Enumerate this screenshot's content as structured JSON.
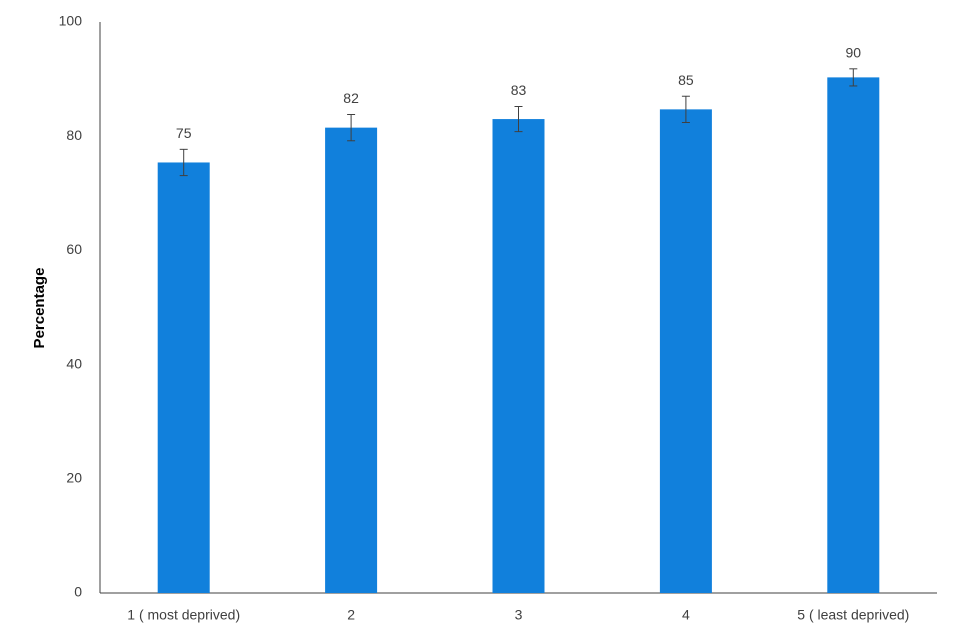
{
  "chart_data": {
    "type": "bar",
    "y_label": "Percentage",
    "categories": [
      "1 ( most deprived)",
      "2",
      "3",
      "4",
      "5 ( least deprived)"
    ],
    "values": [
      75.4,
      81.5,
      83.0,
      84.7,
      90.3
    ],
    "value_labels": [
      "75",
      "82",
      "83",
      "85",
      "90"
    ],
    "errors": [
      2.3,
      2.3,
      2.2,
      2.3,
      1.5
    ],
    "color": "#1180dc",
    "ylim": [
      0,
      100
    ],
    "yticks": [
      0,
      20,
      40,
      60,
      80,
      100
    ],
    "grid": false
  }
}
